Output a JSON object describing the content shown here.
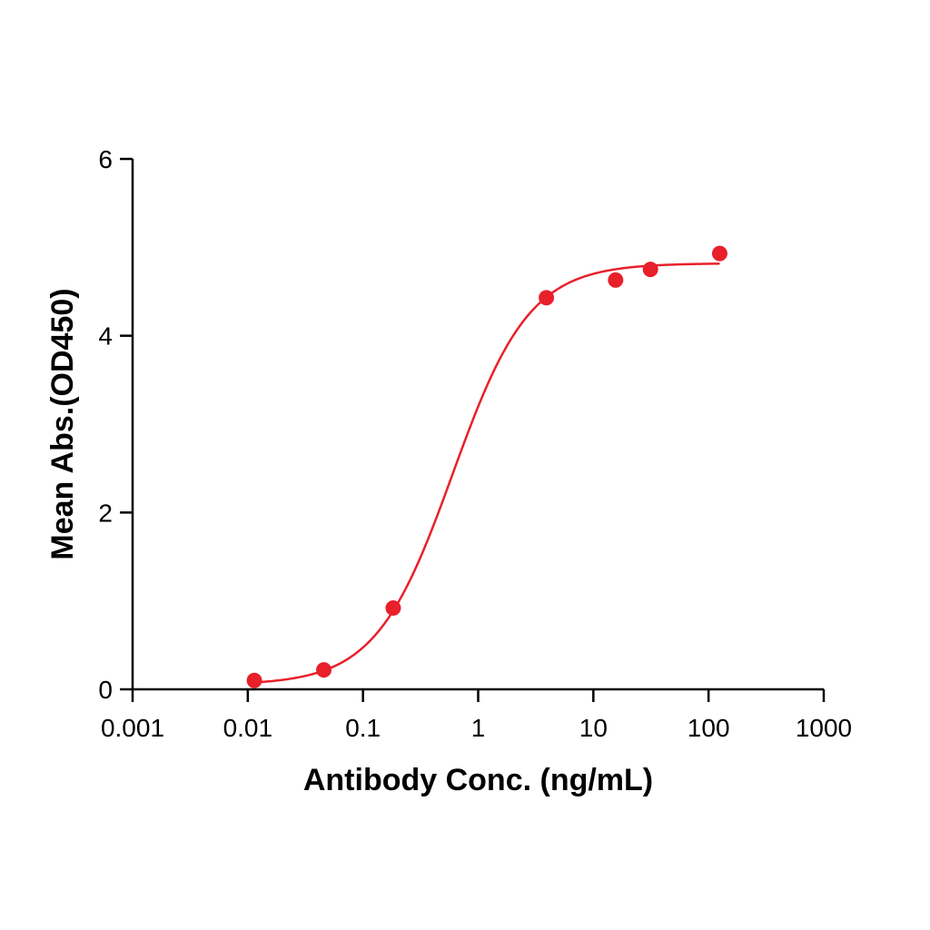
{
  "chart_data": {
    "type": "scatter",
    "title": "",
    "xlabel": "Antibody Conc. (ng/mL)",
    "ylabel": "Mean Abs.(OD450)",
    "x_scale": "log",
    "xlim": [
      0.001,
      1000
    ],
    "ylim": [
      0,
      6
    ],
    "x_ticks": [
      0.001,
      0.01,
      0.1,
      1,
      10,
      100,
      1000
    ],
    "x_tick_labels": [
      "0.001",
      "0.01",
      "0.1",
      "1",
      "10",
      "100",
      "1000"
    ],
    "y_ticks": [
      0,
      2,
      4,
      6
    ],
    "y_tick_labels": [
      "0",
      "2",
      "4",
      "6"
    ],
    "grid": false,
    "legend": "none",
    "series": [
      {
        "color": "#e8202a",
        "points": [
          {
            "x": 0.0114,
            "y": 0.1
          },
          {
            "x": 0.0457,
            "y": 0.22
          },
          {
            "x": 0.183,
            "y": 0.92
          },
          {
            "x": 3.91,
            "y": 4.43
          },
          {
            "x": 15.6,
            "y": 4.63
          },
          {
            "x": 31.3,
            "y": 4.75
          },
          {
            "x": 125,
            "y": 4.93
          }
        ],
        "fit": {
          "model": "4PL",
          "bottom": 0.05,
          "top": 4.82,
          "ec50": 0.6,
          "hill": 1.3,
          "x_range": [
            0.0114,
            125
          ]
        }
      }
    ]
  }
}
